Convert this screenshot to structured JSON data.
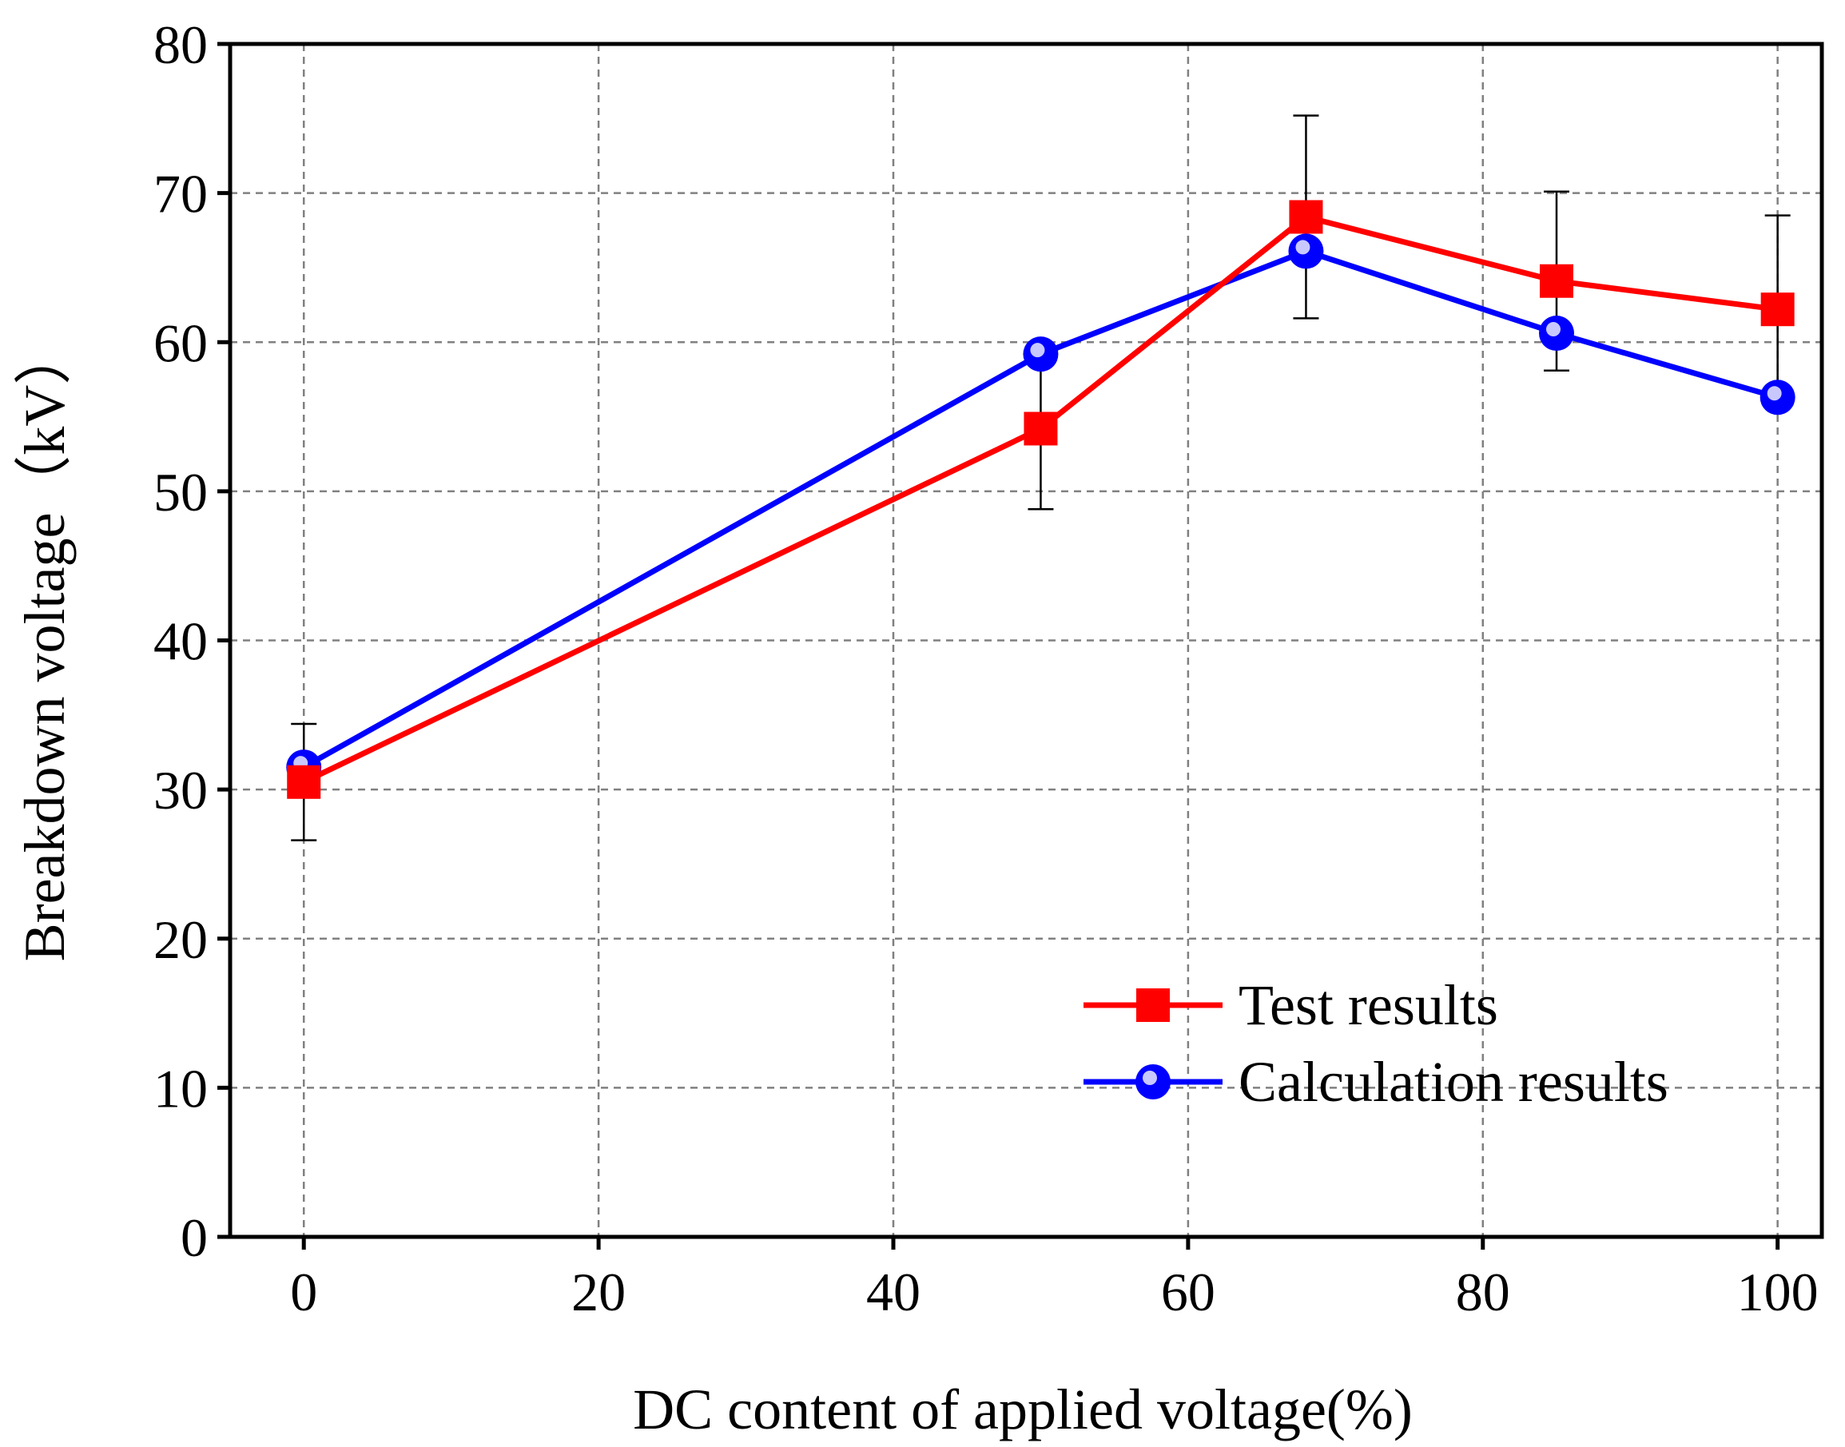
{
  "chart_data": {
    "type": "line",
    "title": "",
    "xlabel": "DC content of applied voltage(%)",
    "ylabel": "Breakdown voltage（kV）",
    "xlim": [
      -5,
      103
    ],
    "ylim": [
      0,
      80
    ],
    "xticks": [
      0,
      20,
      40,
      60,
      80,
      100
    ],
    "yticks": [
      0,
      10,
      20,
      30,
      40,
      50,
      60,
      70,
      80
    ],
    "grid": true,
    "legend_position": "bottom-right",
    "series": [
      {
        "name": "Test results",
        "color": "#ff0000",
        "marker": "square",
        "x": [
          0,
          50,
          68,
          85,
          100
        ],
        "y": [
          30.5,
          54.2,
          68.4,
          64.1,
          62.2
        ],
        "error_low": [
          26.6,
          48.8,
          61.6,
          58.1,
          56.0
        ],
        "error_high": [
          34.4,
          59.6,
          75.2,
          70.1,
          68.5
        ]
      },
      {
        "name": "Calculation results",
        "color": "#0000ff",
        "marker": "circle",
        "x": [
          0,
          50,
          68,
          85,
          100
        ],
        "y": [
          31.5,
          59.2,
          66.1,
          60.6,
          56.3
        ]
      }
    ]
  }
}
